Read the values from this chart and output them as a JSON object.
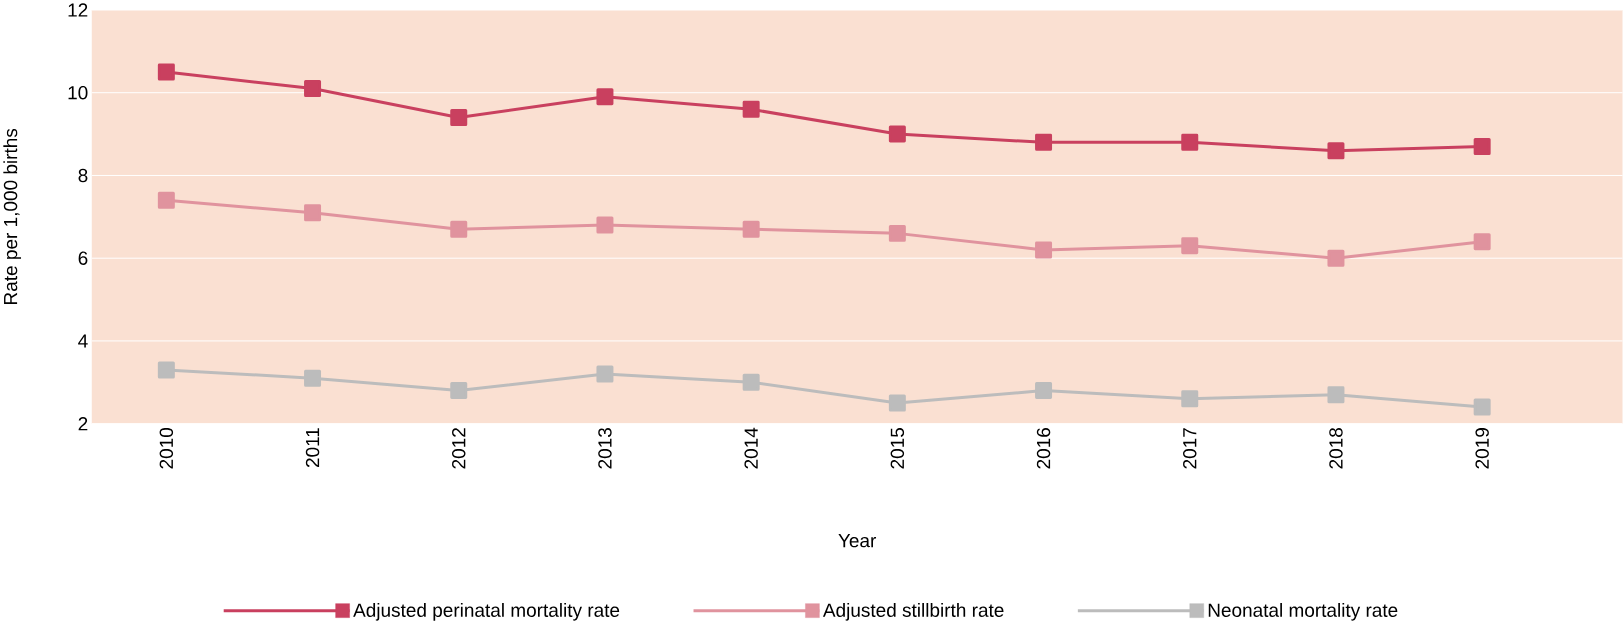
{
  "chart_data": {
    "type": "line",
    "xlabel": "Year",
    "ylabel": "Rate per 1,000 births",
    "categories": [
      "2010",
      "2011",
      "2012",
      "2013",
      "2014",
      "2015",
      "2016",
      "2017",
      "2018",
      "2019"
    ],
    "series": [
      {
        "name": "Adjusted perinatal mortality rate",
        "color": "#c9405f",
        "values": [
          10.5,
          10.1,
          9.4,
          9.9,
          9.6,
          9.0,
          8.8,
          8.8,
          8.6,
          8.7
        ]
      },
      {
        "name": "Adjusted stillbirth rate",
        "color": "#e0939e",
        "values": [
          7.4,
          7.1,
          6.7,
          6.8,
          6.7,
          6.6,
          6.2,
          6.3,
          6.0,
          6.4
        ]
      },
      {
        "name": "Neonatal mortality rate",
        "color": "#bcbcbc",
        "values": [
          3.3,
          3.1,
          2.8,
          3.2,
          3.0,
          2.5,
          2.8,
          2.6,
          2.7,
          2.4
        ]
      }
    ],
    "ylim": [
      2,
      12
    ],
    "yticks": [
      2,
      4,
      6,
      8,
      10,
      12
    ],
    "grid": "y",
    "legend": "bottom",
    "marker": "square",
    "line_style": "solid"
  }
}
